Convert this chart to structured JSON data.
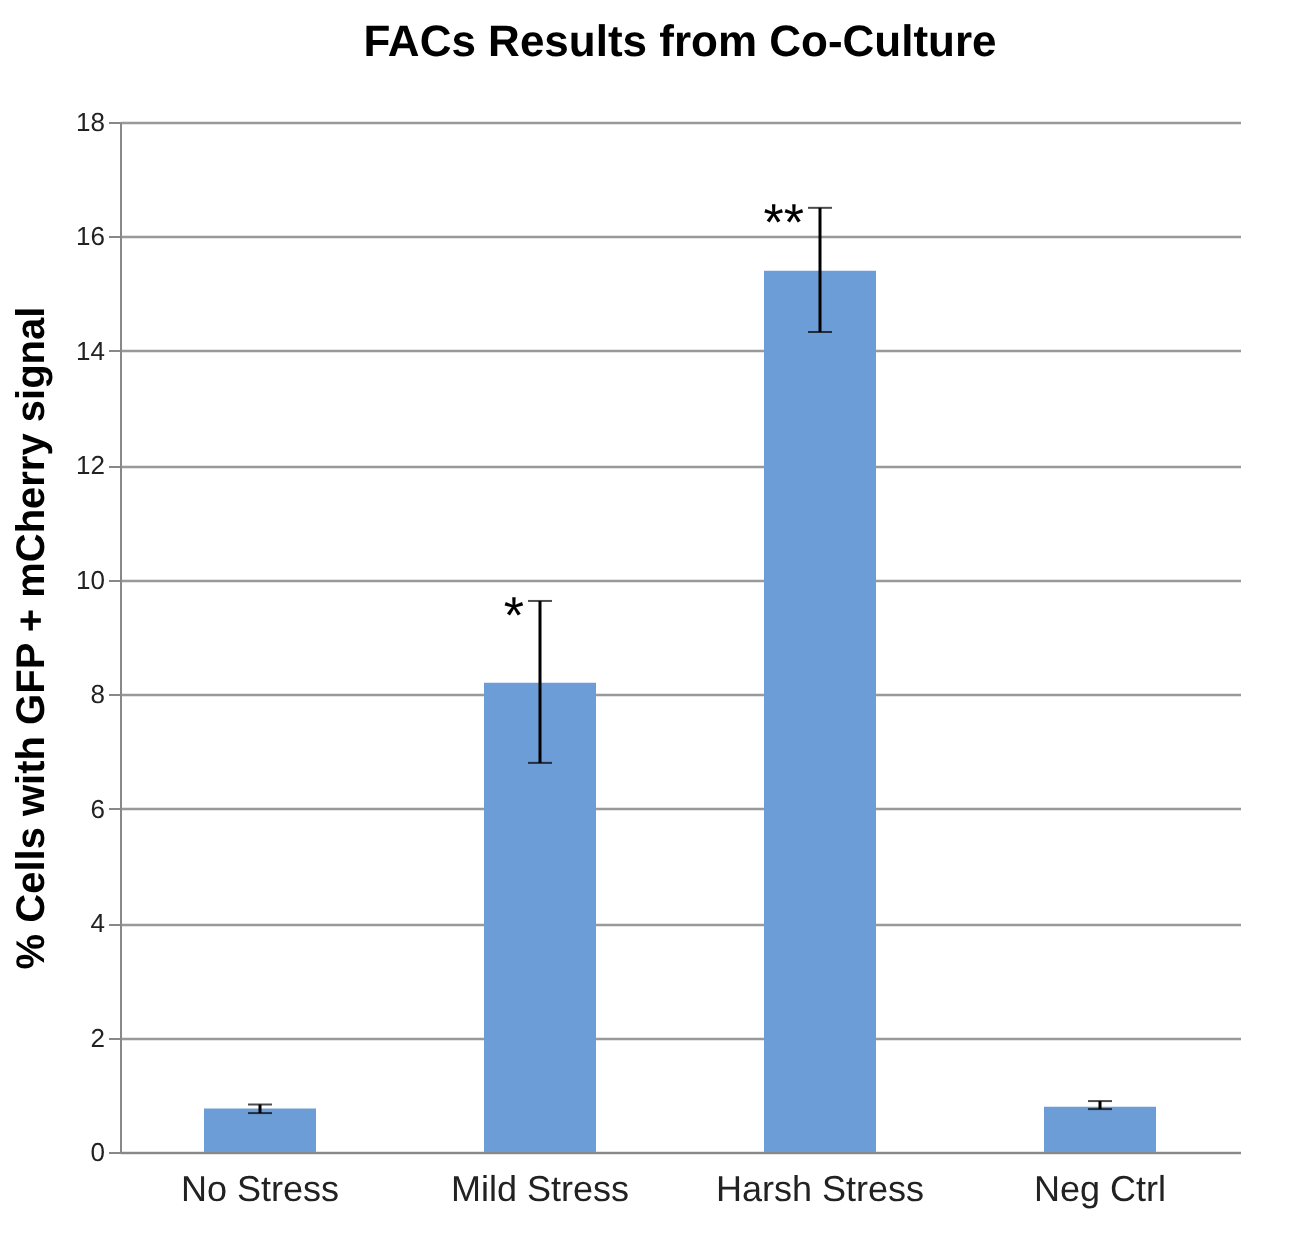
{
  "chart_data": {
    "type": "bar",
    "title": "FACs Results from Co-Culture",
    "ylabel": "% Cells with GFP + mCherry signal",
    "categories": [
      "No Stress",
      "Mild Stress",
      "Harsh Stress",
      "Neg Ctrl"
    ],
    "values": [
      0.76,
      8.2,
      15.4,
      0.79
    ],
    "errors": [
      [
        0.68,
        0.83
      ],
      [
        6.8,
        9.63
      ],
      [
        14.33,
        16.5
      ],
      [
        0.75,
        0.89
      ]
    ],
    "color": "#6c9dd6",
    "ylim": [
      0,
      18
    ],
    "yticks": [
      0,
      2,
      4,
      6,
      8,
      10,
      12,
      14,
      16,
      18
    ],
    "grid": "y",
    "annotations": [
      {
        "text": "*",
        "x": "Mild Stress",
        "y": 9.63
      },
      {
        "text": "**",
        "x": "Harsh Stress",
        "y": 16.5
      }
    ]
  }
}
